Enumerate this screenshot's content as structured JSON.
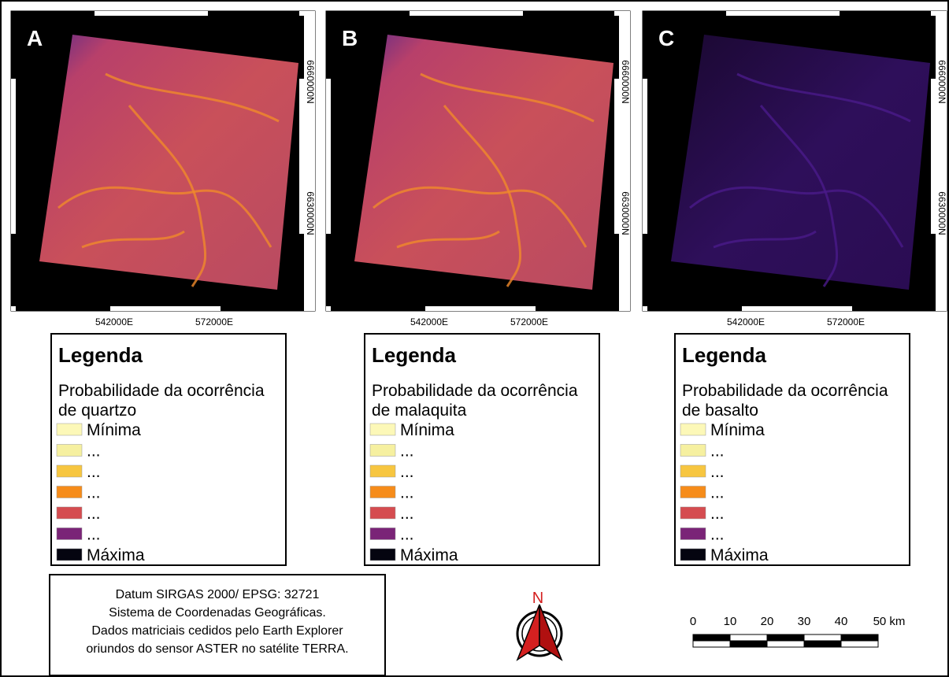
{
  "panels": [
    {
      "label": "A",
      "y_labels": [
        "6660000N",
        "6630000N"
      ],
      "x_labels": [
        "542000E",
        "572000E"
      ],
      "legend": {
        "title": "Legenda",
        "subtitle_lines": [
          "Probabilidade da ocorrência",
          "de quartzo"
        ],
        "items": [
          "Mínima",
          "...",
          "...",
          "...",
          "...",
          "...",
          "Máxima"
        ]
      }
    },
    {
      "label": "B",
      "y_labels": [
        "6660000N",
        "6630000N"
      ],
      "x_labels": [
        "542000E",
        "572000E"
      ],
      "legend": {
        "title": "Legenda",
        "subtitle_lines": [
          "Probabilidade da ocorrência",
          "de malaquita"
        ],
        "items": [
          "Mínima",
          "...",
          "...",
          "...",
          "...",
          "...",
          "Máxima"
        ]
      }
    },
    {
      "label": "C",
      "y_labels": [
        "6660000N",
        "6630000N"
      ],
      "x_labels": [
        "542000E",
        "572000E"
      ],
      "legend": {
        "title": "Legenda",
        "subtitle_lines": [
          "Probabilidade da ocorrência",
          "de basalto"
        ],
        "items": [
          "Mínima",
          "...",
          "...",
          "...",
          "...",
          "...",
          "Máxima"
        ]
      }
    }
  ],
  "notes": [
    "Datum SIRGAS 2000/ EPSG: 32721",
    "Sistema de Coordenadas Geográficas.",
    "Dados matriciais cedidos pelo Earth Explorer",
    "oriundos do sensor ASTER no satélite TERRA."
  ],
  "north": "N",
  "scale": {
    "labels": [
      "0",
      "10",
      "20",
      "30",
      "40",
      "50 km"
    ]
  }
}
